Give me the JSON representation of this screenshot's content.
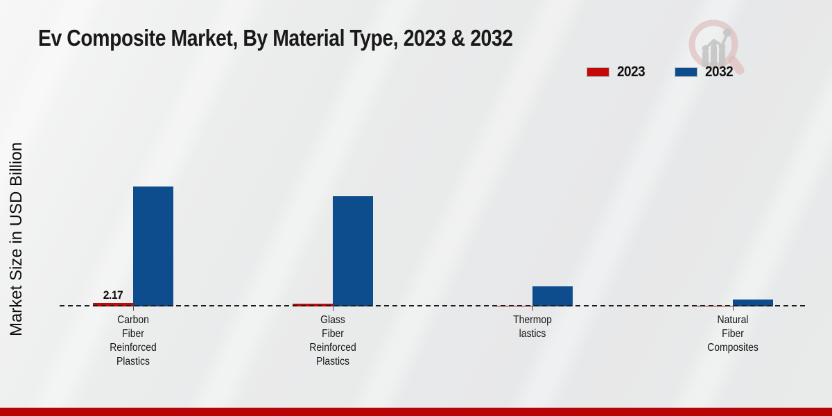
{
  "chart_data": {
    "type": "bar",
    "title": "Ev Composite Market, By Material Type, 2023 & 2032",
    "ylabel": "Market Size in USD Billion",
    "xlabel": "",
    "categories": [
      "Carbon Fiber Reinforced Plastics",
      "Glass Fiber Reinforced Plastics",
      "Thermoplastics",
      "Natural Fiber Composites"
    ],
    "category_label_lines": [
      [
        "Carbon",
        "Fiber",
        "Reinforced",
        "Plastics"
      ],
      [
        "Glass",
        "Fiber",
        "Reinforced",
        "Plastics"
      ],
      [
        "Thermop",
        "lastics"
      ],
      [
        "Natural",
        "Fiber",
        "Composites"
      ]
    ],
    "series": [
      {
        "name": "2023",
        "color": "#c40808",
        "values": [
          2.17,
          1.8,
          0.6,
          0.45
        ],
        "data_labels": [
          "2.17",
          "",
          "",
          ""
        ]
      },
      {
        "name": "2032",
        "color": "#0d4d8d",
        "values": [
          75,
          69,
          12.5,
          4.3
        ],
        "data_labels": [
          "",
          "",
          "",
          ""
        ]
      }
    ],
    "legend_position": "top-right",
    "grid": false,
    "baseline_value": 0,
    "baseline_style": "black-dashed",
    "ylim": [
      0,
      90
    ]
  },
  "branding": {
    "logo_icon": "magnifier-bar-chart-icon"
  },
  "footer": {
    "band_color": "#b80404"
  },
  "colors": {
    "background": "#e9eaea",
    "series_2023": "#c40808",
    "series_2032": "#0d4d8d",
    "title_text": "#191919"
  }
}
